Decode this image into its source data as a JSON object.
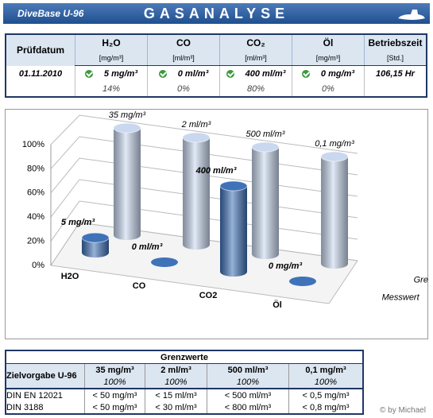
{
  "header": {
    "title": "DiveBase U-96",
    "heading": "GASANALYSE"
  },
  "summary": {
    "columns": [
      {
        "name": "Prüfdatum"
      },
      {
        "name": "H₂O",
        "unit": "[mg/m³]"
      },
      {
        "name": "CO",
        "unit": "[ml/m³]"
      },
      {
        "name": "CO₂",
        "unit": "[ml/m³]"
      },
      {
        "name": "Öl",
        "unit": "[mg/m³]"
      },
      {
        "name": "Betriebszeit",
        "unit": "[Std.]"
      }
    ],
    "row": {
      "date": "01.11.2010",
      "readings": [
        "5 mg/m³",
        "0 ml/m³",
        "400 ml/m³",
        "0 mg/m³"
      ],
      "hours": "106,15 Hr",
      "percents": [
        "14%",
        "0%",
        "80%",
        "0%"
      ]
    }
  },
  "chart_data": {
    "type": "bar3d",
    "categories": [
      "H2O",
      "CO",
      "CO2",
      "Öl"
    ],
    "series": [
      {
        "name": "Messwert",
        "color": "#3f72b8",
        "values": [
          14,
          0,
          80,
          0
        ],
        "point_labels": [
          "5 mg/m³",
          "0 ml/m³",
          "400 ml/m³",
          "0 mg/m³"
        ]
      },
      {
        "name": "Grenzwert",
        "color": "#c9d8ef",
        "values": [
          100,
          100,
          100,
          100
        ],
        "point_labels": [
          "35 mg/m³",
          "2 ml/m³",
          "500 ml/m³",
          "0,1 mg/m³"
        ]
      }
    ],
    "ylim": [
      0,
      100
    ],
    "yticks": [
      {
        "value": 0,
        "label": "0%"
      },
      {
        "value": 20,
        "label": "20%"
      },
      {
        "value": 40,
        "label": "40%"
      },
      {
        "value": 60,
        "label": "60%"
      },
      {
        "value": 80,
        "label": "80%"
      },
      {
        "value": 100,
        "label": "100%"
      }
    ],
    "grid": true
  },
  "limits": {
    "title": "Grenzwerte",
    "label": "Zielvorgabe U-96",
    "targets": [
      "35 mg/m³",
      "2 ml/m³",
      "500 ml/m³",
      "0,1 mg/m³"
    ],
    "target_percents": [
      "100%",
      "100%",
      "100%",
      "100%"
    ],
    "rows": [
      {
        "name": "DIN EN 12021",
        "values": [
          "< 50 mg/m³",
          "< 15 ml/m³",
          "< 500 ml/m³",
          "< 0,5 mg/m³"
        ]
      },
      {
        "name": "DIN 3188",
        "values": [
          "< 50 mg/m³",
          "< 30 ml/m³",
          "< 800 ml/m³",
          "< 0,8 mg/m³"
        ]
      }
    ]
  },
  "footer": "© by Michael"
}
